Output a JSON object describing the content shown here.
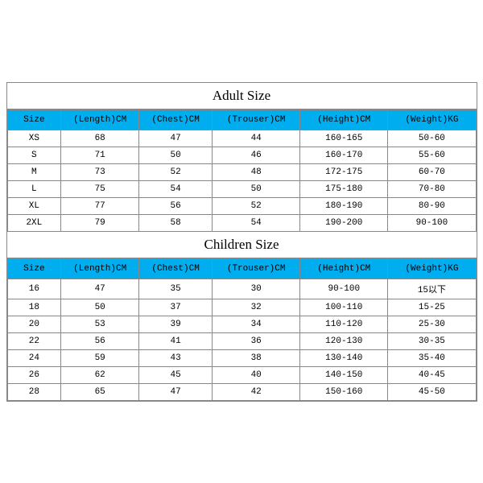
{
  "colors": {
    "header_bg": "#00aeef",
    "border": "#888888",
    "background": "#ffffff",
    "text": "#000000"
  },
  "fonts": {
    "title": "Times New Roman",
    "cells": "Courier New",
    "title_size": 17,
    "cell_size": 11
  },
  "adult": {
    "title": "Adult Size",
    "columns": [
      "Size",
      "(Length)CM",
      "(Chest)CM",
      "(Trouser)CM",
      "(Height)CM",
      "(Weight)KG"
    ],
    "rows": [
      [
        "XS",
        "68",
        "47",
        "44",
        "160-165",
        "50-60"
      ],
      [
        "S",
        "71",
        "50",
        "46",
        "160-170",
        "55-60"
      ],
      [
        "M",
        "73",
        "52",
        "48",
        "172-175",
        "60-70"
      ],
      [
        "L",
        "75",
        "54",
        "50",
        "175-180",
        "70-80"
      ],
      [
        "XL",
        "77",
        "56",
        "52",
        "180-190",
        "80-90"
      ],
      [
        "2XL",
        "79",
        "58",
        "54",
        "190-200",
        "90-100"
      ]
    ]
  },
  "children": {
    "title": "Children Size",
    "columns": [
      "Size",
      "(Length)CM",
      "(Chest)CM",
      "(Trouser)CM",
      "(Height)CM",
      "(Weight)KG"
    ],
    "rows": [
      [
        "16",
        "47",
        "35",
        "30",
        "90-100",
        "15以下"
      ],
      [
        "18",
        "50",
        "37",
        "32",
        "100-110",
        "15-25"
      ],
      [
        "20",
        "53",
        "39",
        "34",
        "110-120",
        "25-30"
      ],
      [
        "22",
        "56",
        "41",
        "36",
        "120-130",
        "30-35"
      ],
      [
        "24",
        "59",
        "43",
        "38",
        "130-140",
        "35-40"
      ],
      [
        "26",
        "62",
        "45",
        "40",
        "140-150",
        "40-45"
      ],
      [
        "28",
        "65",
        "47",
        "42",
        "150-160",
        "45-50"
      ]
    ]
  }
}
